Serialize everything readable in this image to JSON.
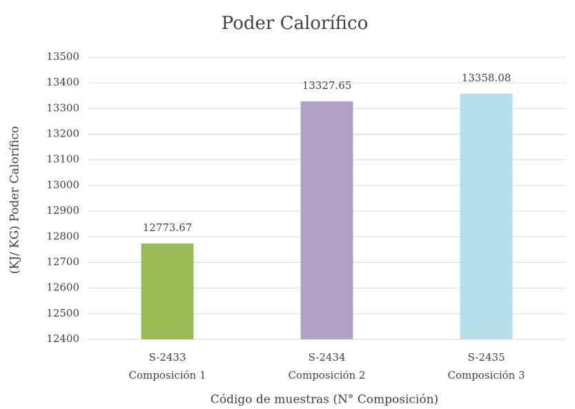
{
  "chart_data": {
    "type": "bar",
    "title": "Poder Calorífico",
    "xlabel": "Código de muestras (N° Composición)",
    "ylabel": "(KJ/ KG) Poder Calorífico",
    "categories": [
      [
        "S-2433",
        "Composición 1"
      ],
      [
        "S-2434",
        "Composición 2"
      ],
      [
        "S-2435",
        "Composición 3"
      ]
    ],
    "values": [
      12773.67,
      13327.65,
      13358.08
    ],
    "colors": [
      "#9bbb59",
      "#b1a0c8",
      "#b7dde8"
    ],
    "ylim": [
      12400,
      13500
    ],
    "yticks": [
      12400,
      12500,
      12600,
      12700,
      12800,
      12900,
      13000,
      13100,
      13200,
      13300,
      13400,
      13500
    ],
    "grid": true
  }
}
